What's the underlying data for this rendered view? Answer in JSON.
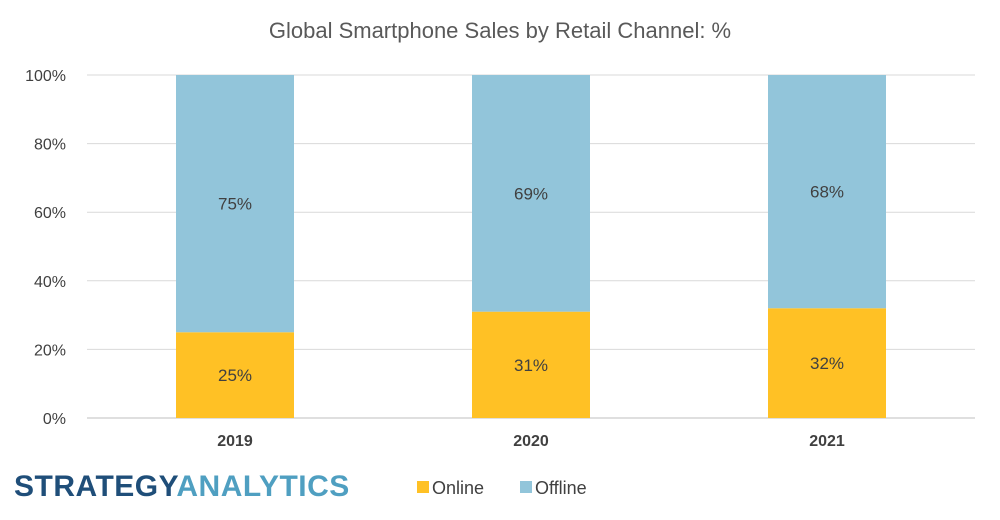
{
  "chart_data": {
    "type": "bar",
    "stacked": true,
    "title": "Global Smartphone Sales by Retail Channel: %",
    "categories": [
      "2019",
      "2020",
      "2021"
    ],
    "series": [
      {
        "name": "Online",
        "values": [
          25,
          31,
          32
        ],
        "labels": [
          "25%",
          "31%",
          "32%"
        ],
        "color": "#FFC125"
      },
      {
        "name": "Offline",
        "values": [
          75,
          69,
          68
        ],
        "labels": [
          "75%",
          "69%",
          "68%"
        ],
        "color": "#92C5DA"
      }
    ],
    "ylim": [
      0,
      100
    ],
    "yticks": [
      0,
      20,
      40,
      60,
      80,
      100
    ],
    "ytick_labels": [
      "0%",
      "20%",
      "40%",
      "60%",
      "80%",
      "100%"
    ],
    "xlabel": "",
    "ylabel": "",
    "grid": true,
    "legend_position": "bottom"
  },
  "branding": {
    "logo_part1": "STRATEGY",
    "logo_part2": "ANALYTICS",
    "logo_color1": "#1F4E79",
    "logo_color2": "#4F9FC1"
  },
  "colors": {
    "gridline": "#D9D9D9",
    "axis": "#BFBFBF"
  }
}
